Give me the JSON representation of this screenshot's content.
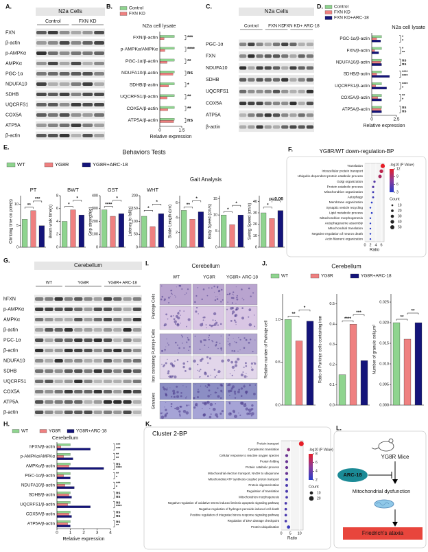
{
  "A": {
    "label": "A.",
    "title": "N2a Cells",
    "groups": [
      "Control",
      "FXN KD"
    ],
    "rows": [
      "FXN",
      "β-actin",
      "p-AMPKα",
      "AMPKα",
      "PGC-1α",
      "NDUFA10",
      "SDHB",
      "UQCRFS1",
      "COX5A",
      "ATP5A",
      "β-actin"
    ]
  },
  "B": {
    "label": "B.",
    "title": "N2a cell lysate",
    "categories": [
      "FXN/β-actin",
      "p-AMPKα/AMPKα",
      "PGC-1α/β-actin",
      "NDUFA10/β-actin",
      "SDHB/β-actin",
      "UQCRFS1/β-actin",
      "COX5A/β-actin",
      "ATP5A/β-actin"
    ],
    "series": [
      {
        "name": "Control",
        "color": "#8fd48f",
        "values": [
          1,
          1,
          1,
          1,
          1,
          1,
          1,
          1
        ]
      },
      {
        "name": "FXN KD",
        "color": "#ef8080",
        "values": [
          0.3,
          0.35,
          0.5,
          0.9,
          0.6,
          0.5,
          0.55,
          0.95
        ]
      }
    ],
    "significance": [
      "***",
      "****",
      "**",
      "ns",
      "*",
      "**",
      "**",
      "ns"
    ],
    "xlim": [
      0,
      1.5
    ],
    "xticks": [
      0,
      1.5
    ],
    "xlabel": "Relative expression"
  },
  "C": {
    "label": "C.",
    "title": "N2a Cells",
    "groups": [
      "Control",
      "FXN KD",
      "FXN KD+ ARC-18"
    ],
    "rows": [
      "PGC-1α",
      "FXN",
      "NDUFA10",
      "SDHB",
      "UQCRFS1",
      "COX5A",
      "ATP5A",
      "β-actin"
    ]
  },
  "D": {
    "label": "D.",
    "title": "N2a cell lysate",
    "categories": [
      "PGC-1α/β-actin",
      "FXN/β-actin",
      "NDUFA10/β-actin",
      "SDHB/β-actin",
      "UQCRFS1/β-actin",
      "COX5A/β-actin",
      "ATP5A/β-actin"
    ],
    "series": [
      {
        "name": "Control",
        "color": "#8fd48f",
        "values": [
          1,
          1,
          1,
          1,
          1,
          1,
          1
        ]
      },
      {
        "name": "FXN KD",
        "color": "#ef8080",
        "values": [
          0.5,
          0.3,
          0.9,
          0.5,
          0.4,
          0.6,
          0.95
        ]
      },
      {
        "name": "FXN KD+ARC-18",
        "color": "#14147a",
        "values": [
          0.9,
          0.7,
          1.0,
          1.8,
          1.5,
          1.0,
          1.0
        ]
      }
    ],
    "significance": [
      [
        "*",
        "*"
      ],
      [
        "*",
        "**"
      ],
      [
        "ns",
        "ns"
      ],
      [
        "****",
        "****"
      ],
      [
        "****",
        "*"
      ],
      [
        "**",
        "*"
      ],
      [
        "ns",
        "ns"
      ]
    ],
    "xlim": [
      0,
      2.5
    ],
    "xticks": [
      0,
      2.5
    ],
    "xlabel": "Relative expression"
  },
  "E": {
    "label": "E.",
    "title": "Behaviors Tests",
    "group_title": "Gait Analysis",
    "series": [
      {
        "name": "WT",
        "color": "#8fd48f"
      },
      {
        "name": "YG8R",
        "color": "#ef8080"
      },
      {
        "name": "YG8R+ARC-18",
        "color": "#14147a"
      }
    ],
    "charts": [
      {
        "type": "bar",
        "title": "PT",
        "ylabel": "Climbing time on pole(s)",
        "values": [
          6.5,
          8.5,
          5
        ],
        "ylim": [
          0,
          12
        ],
        "yticks": [
          0,
          5,
          10
        ],
        "significance": [
          "**",
          "***"
        ]
      },
      {
        "type": "bar",
        "title": "BWT",
        "ylabel": "Beam walk time(s)",
        "values": [
          4,
          5.8,
          5
        ],
        "ylim": [
          0,
          8
        ],
        "yticks": [
          0,
          2,
          4,
          6,
          8
        ],
        "significance": [
          "*",
          "*"
        ]
      },
      {
        "type": "bar",
        "title": "GST",
        "ylabel": "Grip strength(g)",
        "values": [
          290,
          240,
          260
        ],
        "ylim": [
          0,
          400
        ],
        "yticks": [
          0,
          100,
          200,
          300,
          400
        ],
        "significance": [
          "****",
          "*"
        ]
      },
      {
        "type": "bar",
        "title": "WHT",
        "ylabel": "Latency to fall(s)",
        "values": [
          120,
          80,
          130
        ],
        "ylim": [
          0,
          200
        ],
        "yticks": [
          0,
          50,
          100,
          150,
          200
        ],
        "significance": [
          "*",
          "*"
        ]
      },
      {
        "type": "bar",
        "ylabel": "Stride Length (cm)",
        "values": [
          5,
          3.8,
          4.8
        ],
        "ylim": [
          0,
          7
        ],
        "yticks": [
          0,
          2,
          4,
          6
        ],
        "significance": [
          "**",
          "*"
        ]
      },
      {
        "type": "bar",
        "ylabel": "Body Speed (cm/s)",
        "values": [
          10,
          7,
          10
        ],
        "ylim": [
          0,
          16
        ],
        "yticks": [
          0,
          5,
          10,
          15
        ],
        "significance": [
          "*",
          "*"
        ]
      },
      {
        "type": "bar",
        "ylabel": "Swing Speed (cm/s)",
        "values": [
          30,
          25,
          32
        ],
        "ylim": [
          0,
          45
        ],
        "yticks": [
          0,
          10,
          20,
          30,
          40
        ],
        "significance": [
          "*",
          "p=0.06"
        ]
      }
    ]
  },
  "F": {
    "label": "F.",
    "title": "YG8R/WT down-regulation-BP",
    "type": "bubble",
    "terms": [
      "Translation",
      "Intracellular protein transport",
      "Ubiquitin-dependent protein catabolic process",
      "Golgi organization",
      "Protein catabolic process",
      "Mitochondrion organization",
      "Autophagy",
      "Membrane organization",
      "Synaptic vesicle recycling",
      "Lipid metabolic process",
      "Mitochondrion morphogenesis",
      "Autophagosome assembly",
      "Mitochondrial translation",
      "Negative regulation of neuron death",
      "Actin filament organization"
    ],
    "ratio": [
      6.5,
      6,
      5.5,
      3.5,
      3,
      3,
      3,
      2.5,
      2,
      2.5,
      2,
      2,
      2,
      2,
      2
    ],
    "logp": [
      13,
      10,
      9,
      5,
      5,
      4,
      4,
      3,
      3,
      3,
      3,
      3,
      3,
      3,
      3
    ],
    "count": [
      55,
      40,
      35,
      15,
      15,
      12,
      12,
      10,
      8,
      10,
      8,
      8,
      8,
      8,
      8
    ],
    "xlim": [
      0,
      7
    ],
    "xticks": [
      0,
      2,
      4,
      6
    ],
    "xlabel": "Ratio",
    "color_title": "-log10 (P Value)",
    "color_ticks": [
      12,
      9,
      6,
      3
    ],
    "size_title": "Count",
    "size_ticks": [
      10,
      20,
      30,
      40,
      50
    ]
  },
  "G": {
    "label": "G.",
    "title": "Cerebellum",
    "groups": [
      "WT",
      "YG8R",
      "YG8R+ ARC-18"
    ],
    "rows": [
      "hFXN",
      "p-AMPKα",
      "AMPKα",
      "β-actin",
      "PGC-1α",
      "β-actin",
      "NDUFA10",
      "SDHB",
      "UQCRFS1",
      "COX5A",
      "ATP5A",
      "β-actin"
    ]
  },
  "H": {
    "label": "H.",
    "title": "Cerebellum",
    "categories": [
      "hFXN/β-actin",
      "p-AMPKα/AMPKα",
      "AMPKα/β-actin",
      "PGC-1α/β-actin",
      "NDUFA10/β-actin",
      "SDHB/β-actin",
      "UQCRFS1/β-actin",
      "COX5A/β-actin",
      "ATP5A/β-actin"
    ],
    "series": [
      {
        "name": "WT",
        "color": "#8fd48f",
        "values": [
          1,
          1,
          1,
          1,
          1,
          1,
          1,
          1,
          1
        ]
      },
      {
        "name": "YG8R",
        "color": "#ef8080",
        "values": [
          0.3,
          0.5,
          0.9,
          0.5,
          0.6,
          0.9,
          0.8,
          0.9,
          0.8
        ]
      },
      {
        "name": "YG8R+ARC-18",
        "color": "#14147a",
        "values": [
          2.5,
          1.2,
          3.5,
          1.0,
          1.3,
          1.1,
          2.5,
          1.1,
          1.0
        ]
      }
    ],
    "significance": [
      [
        "***",
        "***"
      ],
      [
        "**",
        "**"
      ],
      [
        "ns",
        "****"
      ],
      [
        "**",
        "*"
      ],
      [
        "***",
        "*"
      ],
      [
        "ns",
        "ns"
      ],
      [
        "ns",
        "****"
      ],
      [
        "ns",
        "ns"
      ],
      [
        "ns",
        "**"
      ]
    ],
    "xlim": [
      0,
      4
    ],
    "xticks": [
      0,
      1,
      2,
      3,
      4
    ],
    "xlabel": "Relative expression"
  },
  "I": {
    "label": "I.",
    "title": "Cerebellum",
    "columns": [
      "WT",
      "YG8R",
      "YG8R+ ARC-18"
    ],
    "rows": [
      "Purkinje Cells",
      "Iron containing Purkinje Cells",
      "Granules"
    ]
  },
  "J": {
    "label": "J.",
    "title": "Cerebellum",
    "series": [
      {
        "name": "WT",
        "color": "#8fd48f"
      },
      {
        "name": "YG8R",
        "color": "#ef8080"
      },
      {
        "name": "YG8R+ARC-18",
        "color": "#14147a"
      }
    ],
    "charts": [
      {
        "type": "bar",
        "ylabel": "Relative number of Purkinje cell",
        "values": [
          1.0,
          0.75,
          0.98
        ],
        "ylim": [
          0,
          1.3
        ],
        "yticks": [
          {
            "value": 0,
            "label": "0.0"
          },
          0.5,
          {
            "value": 1,
            "label": "1.0"
          }
        ],
        "significance": [
          "**",
          "*"
        ]
      },
      {
        "type": "bar",
        "ylabel": "Ratio of Purkinje cells containing iron",
        "values": [
          0.15,
          0.4,
          0.22
        ],
        "ylim": [
          0,
          0.55
        ],
        "yticks": [
          {
            "value": 0,
            "label": "0.0"
          },
          0.1,
          0.2,
          0.3,
          0.4,
          0.5
        ],
        "significance": [
          "****",
          "***"
        ]
      },
      {
        "type": "bar",
        "ylabel": "Number of granule cell/μm²",
        "values": [
          0.02,
          0.016,
          0.02
        ],
        "ylim": [
          0,
          0.027
        ],
        "yticks": [
          {
            "value": 0,
            "label": "0.000"
          },
          0.005,
          {
            "value": 0.01,
            "label": "0.010"
          },
          0.015,
          {
            "value": 0.02,
            "label": "0.020"
          },
          0.025
        ],
        "significance": [
          "**",
          "**"
        ]
      }
    ]
  },
  "K": {
    "label": "K.",
    "title": "Cluster 2-BP",
    "type": "bubble",
    "terms": [
      "Protein transport",
      "Cytoplasmic translation",
      "Cellular response to reactive oxygen species",
      "Protein folding",
      "Protein catabolic process",
      "Mitochondrial electron transport, NADH to ubiquinone",
      "Mitochondrial ATP synthesis coupled proton transport",
      "Protein oligomerization",
      "Regulation of translation",
      "Mitochondrion morphogenesis",
      "Negative regulation of oxidative stress-induced intrinsic apoptotic signaling pathway",
      "Negative regulation of hydrogen peroxide-induced cell death",
      "Positive regulation of integrated stress response signaling pathway",
      "Regulation of DNA damage checkpoint",
      "Protein ubiquitination"
    ],
    "ratio": [
      11,
      4,
      3,
      3,
      3,
      3,
      3,
      3,
      3,
      3,
      2.5,
      2.5,
      2.5,
      2.5,
      4
    ],
    "logp": [
      8,
      5,
      4,
      4,
      4,
      4,
      3,
      3,
      3,
      3,
      3,
      3,
      3,
      3,
      2.5
    ],
    "count": [
      22,
      10,
      8,
      8,
      8,
      8,
      7,
      7,
      7,
      6,
      6,
      6,
      6,
      6,
      10
    ],
    "xlim": [
      0,
      12
    ],
    "xticks": [
      0,
      5,
      10
    ],
    "xlabel": "Ratio",
    "color_title": "-log10 (P Value)",
    "color_ticks": [
      8,
      6,
      4,
      2
    ],
    "size_title": "Count",
    "size_ticks": [
      10,
      20
    ]
  },
  "L": {
    "label": "L.",
    "mice": "YG8R Mice",
    "drug": "ARC-18",
    "dysfunction": "Mitochondrial dysfunction",
    "disease": "Friedrich's ataxia"
  }
}
